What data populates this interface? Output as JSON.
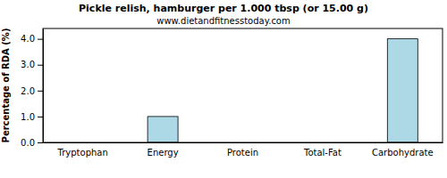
{
  "chart_data": {
    "type": "bar",
    "title": "Pickle relish, hamburger per 1.000 tbsp (or 15.00 g)",
    "subtitle": "www.dietandfitnesstoday.com",
    "y_label": "Percentage of RDA (%)",
    "categories": [
      "Tryptophan",
      "Energy",
      "Protein",
      "Total-Fat",
      "Carbohydrate"
    ],
    "values": [
      0,
      1.0,
      0,
      0,
      4.0
    ],
    "color": "#add8e6",
    "ylim": [
      0,
      4.4
    ],
    "yticks": [
      {
        "value": 0,
        "label": "0.0"
      },
      {
        "value": 1,
        "label": "1.0"
      },
      {
        "value": 2,
        "label": "2.0"
      },
      {
        "value": 3,
        "label": "3.0"
      },
      {
        "value": 4,
        "label": "4.0"
      }
    ],
    "grid": false
  }
}
